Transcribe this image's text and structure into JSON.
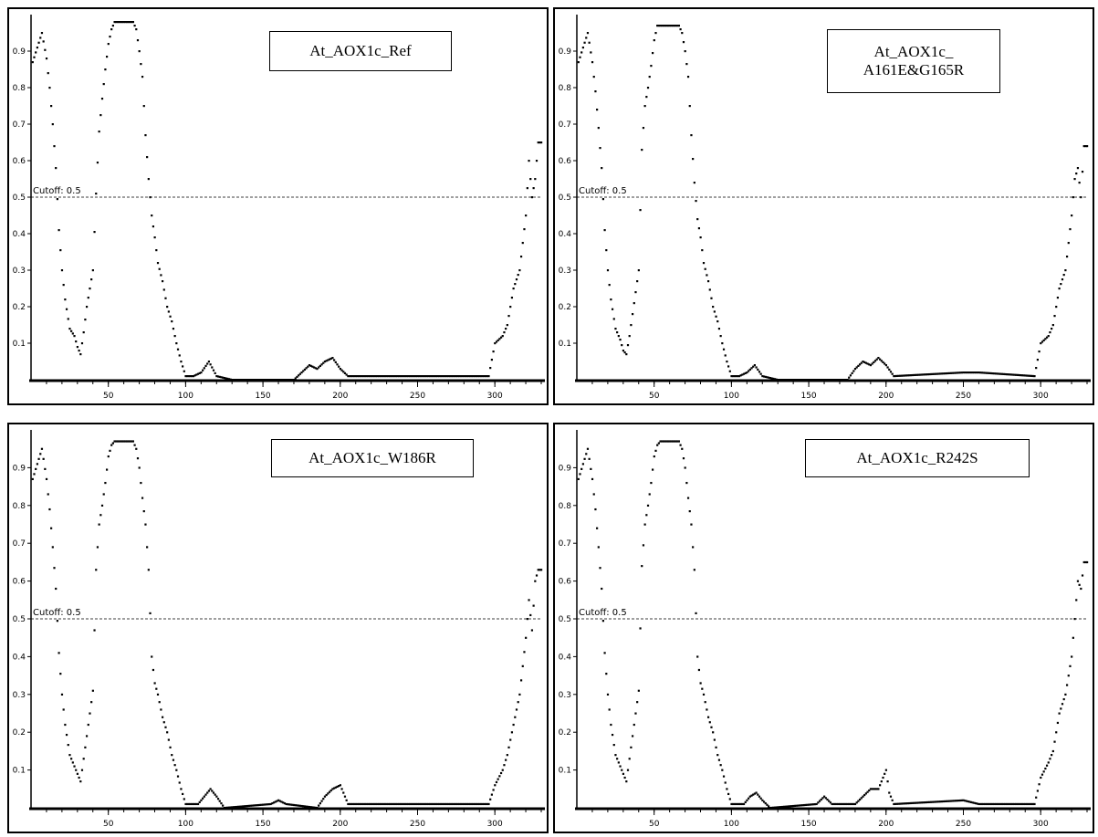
{
  "figure": {
    "panels": [
      {
        "id": "ref",
        "title_lines": [
          "At_AOX1c_Ref"
        ]
      },
      {
        "id": "a161e",
        "title_lines": [
          "At_AOX1c_",
          "A161E&G165R"
        ]
      },
      {
        "id": "w186r",
        "title_lines": [
          "At_AOX1c_W186R"
        ]
      },
      {
        "id": "r242s",
        "title_lines": [
          "At_AOX1c_R242S"
        ]
      }
    ]
  },
  "chart_data": [
    {
      "type": "scatter",
      "title": "At_AOX1c_Ref",
      "xlabel": "",
      "ylabel": "",
      "xlim": [
        0,
        330
      ],
      "ylim": [
        0,
        1.0
      ],
      "x_ticks": [
        50,
        100,
        150,
        200,
        250,
        300
      ],
      "y_ticks": [
        0.1,
        0.2,
        0.3,
        0.4,
        0.5,
        0.6,
        0.7,
        0.8,
        0.9
      ],
      "cutoff": {
        "label": "Cutoff: 0.5",
        "value": 0.5
      },
      "profile": [
        [
          1,
          0.87
        ],
        [
          4,
          0.91
        ],
        [
          7,
          0.95
        ],
        [
          10,
          0.88
        ],
        [
          12,
          0.8
        ],
        [
          14,
          0.7
        ],
        [
          16,
          0.58
        ],
        [
          18,
          0.41
        ],
        [
          20,
          0.3
        ],
        [
          22,
          0.22
        ],
        [
          25,
          0.14
        ],
        [
          28,
          0.12
        ],
        [
          30,
          0.09
        ],
        [
          32,
          0.07
        ],
        [
          34,
          0.13
        ],
        [
          36,
          0.2
        ],
        [
          38,
          0.25
        ],
        [
          40,
          0.3
        ],
        [
          42,
          0.51
        ],
        [
          44,
          0.68
        ],
        [
          46,
          0.77
        ],
        [
          48,
          0.85
        ],
        [
          50,
          0.92
        ],
        [
          52,
          0.96
        ],
        [
          54,
          0.98
        ],
        [
          60,
          0.98
        ],
        [
          66,
          0.98
        ],
        [
          68,
          0.96
        ],
        [
          70,
          0.9
        ],
        [
          72,
          0.83
        ],
        [
          74,
          0.67
        ],
        [
          76,
          0.55
        ],
        [
          78,
          0.45
        ],
        [
          80,
          0.39
        ],
        [
          82,
          0.32
        ],
        [
          85,
          0.27
        ],
        [
          88,
          0.2
        ],
        [
          91,
          0.16
        ],
        [
          94,
          0.1
        ],
        [
          97,
          0.05
        ],
        [
          100,
          0.01
        ],
        [
          105,
          0.01
        ],
        [
          110,
          0.02
        ],
        [
          115,
          0.05
        ],
        [
          120,
          0.01
        ],
        [
          130,
          0.0
        ],
        [
          170,
          0.0
        ],
        [
          175,
          0.02
        ],
        [
          180,
          0.04
        ],
        [
          185,
          0.03
        ],
        [
          190,
          0.05
        ],
        [
          195,
          0.06
        ],
        [
          200,
          0.03
        ],
        [
          205,
          0.01
        ],
        [
          250,
          0.01
        ],
        [
          270,
          0.01
        ],
        [
          296,
          0.01
        ],
        [
          300,
          0.1
        ],
        [
          305,
          0.12
        ],
        [
          308,
          0.15
        ],
        [
          312,
          0.25
        ],
        [
          316,
          0.3
        ],
        [
          320,
          0.45
        ],
        [
          322,
          0.6
        ],
        [
          324,
          0.5
        ],
        [
          326,
          0.55
        ],
        [
          328,
          0.65
        ]
      ]
    },
    {
      "type": "scatter",
      "title": "At_AOX1c_ A161E&G165R",
      "xlabel": "",
      "ylabel": "",
      "xlim": [
        0,
        330
      ],
      "ylim": [
        0,
        1.0
      ],
      "x_ticks": [
        50,
        100,
        150,
        200,
        250,
        300
      ],
      "y_ticks": [
        0.1,
        0.2,
        0.3,
        0.4,
        0.5,
        0.6,
        0.7,
        0.8,
        0.9
      ],
      "cutoff": {
        "label": "Cutoff: 0.5",
        "value": 0.5
      },
      "profile": [
        [
          1,
          0.87
        ],
        [
          4,
          0.91
        ],
        [
          7,
          0.95
        ],
        [
          10,
          0.87
        ],
        [
          12,
          0.79
        ],
        [
          14,
          0.69
        ],
        [
          16,
          0.58
        ],
        [
          18,
          0.41
        ],
        [
          20,
          0.3
        ],
        [
          22,
          0.22
        ],
        [
          25,
          0.14
        ],
        [
          28,
          0.11
        ],
        [
          30,
          0.08
        ],
        [
          32,
          0.07
        ],
        [
          34,
          0.12
        ],
        [
          36,
          0.18
        ],
        [
          38,
          0.24
        ],
        [
          40,
          0.3
        ],
        [
          42,
          0.63
        ],
        [
          44,
          0.75
        ],
        [
          46,
          0.8
        ],
        [
          48,
          0.86
        ],
        [
          50,
          0.93
        ],
        [
          52,
          0.97
        ],
        [
          54,
          0.97
        ],
        [
          66,
          0.97
        ],
        [
          68,
          0.95
        ],
        [
          70,
          0.9
        ],
        [
          72,
          0.83
        ],
        [
          74,
          0.67
        ],
        [
          76,
          0.54
        ],
        [
          78,
          0.44
        ],
        [
          80,
          0.39
        ],
        [
          82,
          0.32
        ],
        [
          85,
          0.27
        ],
        [
          88,
          0.2
        ],
        [
          91,
          0.16
        ],
        [
          94,
          0.1
        ],
        [
          97,
          0.05
        ],
        [
          100,
          0.01
        ],
        [
          105,
          0.01
        ],
        [
          110,
          0.02
        ],
        [
          115,
          0.04
        ],
        [
          120,
          0.01
        ],
        [
          130,
          0.0
        ],
        [
          175,
          0.0
        ],
        [
          180,
          0.03
        ],
        [
          185,
          0.05
        ],
        [
          190,
          0.04
        ],
        [
          195,
          0.06
        ],
        [
          200,
          0.04
        ],
        [
          205,
          0.01
        ],
        [
          250,
          0.02
        ],
        [
          260,
          0.02
        ],
        [
          296,
          0.01
        ],
        [
          300,
          0.1
        ],
        [
          305,
          0.12
        ],
        [
          308,
          0.15
        ],
        [
          312,
          0.25
        ],
        [
          316,
          0.3
        ],
        [
          320,
          0.45
        ],
        [
          322,
          0.55
        ],
        [
          324,
          0.58
        ],
        [
          326,
          0.5
        ],
        [
          328,
          0.64
        ]
      ]
    },
    {
      "type": "scatter",
      "title": "At_AOX1c_W186R",
      "xlabel": "",
      "ylabel": "",
      "xlim": [
        0,
        330
      ],
      "ylim": [
        0,
        1.0
      ],
      "x_ticks": [
        50,
        100,
        150,
        200,
        250,
        300
      ],
      "y_ticks": [
        0.1,
        0.2,
        0.3,
        0.4,
        0.5,
        0.6,
        0.7,
        0.8,
        0.9
      ],
      "cutoff": {
        "label": "Cutoff: 0.5",
        "value": 0.5
      },
      "profile": [
        [
          1,
          0.87
        ],
        [
          4,
          0.91
        ],
        [
          7,
          0.95
        ],
        [
          10,
          0.87
        ],
        [
          12,
          0.79
        ],
        [
          14,
          0.69
        ],
        [
          16,
          0.58
        ],
        [
          18,
          0.41
        ],
        [
          20,
          0.3
        ],
        [
          22,
          0.22
        ],
        [
          25,
          0.14
        ],
        [
          28,
          0.11
        ],
        [
          30,
          0.09
        ],
        [
          32,
          0.07
        ],
        [
          34,
          0.13
        ],
        [
          36,
          0.19
        ],
        [
          38,
          0.25
        ],
        [
          40,
          0.31
        ],
        [
          42,
          0.63
        ],
        [
          44,
          0.75
        ],
        [
          46,
          0.8
        ],
        [
          48,
          0.86
        ],
        [
          50,
          0.93
        ],
        [
          52,
          0.96
        ],
        [
          54,
          0.97
        ],
        [
          66,
          0.97
        ],
        [
          68,
          0.95
        ],
        [
          70,
          0.9
        ],
        [
          72,
          0.82
        ],
        [
          74,
          0.75
        ],
        [
          76,
          0.63
        ],
        [
          78,
          0.4
        ],
        [
          80,
          0.33
        ],
        [
          82,
          0.3
        ],
        [
          85,
          0.24
        ],
        [
          88,
          0.2
        ],
        [
          91,
          0.14
        ],
        [
          94,
          0.1
        ],
        [
          97,
          0.05
        ],
        [
          100,
          0.01
        ],
        [
          108,
          0.01
        ],
        [
          112,
          0.03
        ],
        [
          116,
          0.05
        ],
        [
          120,
          0.03
        ],
        [
          125,
          0.0
        ],
        [
          155,
          0.01
        ],
        [
          160,
          0.02
        ],
        [
          165,
          0.01
        ],
        [
          185,
          0.0
        ],
        [
          190,
          0.03
        ],
        [
          195,
          0.05
        ],
        [
          200,
          0.06
        ],
        [
          205,
          0.01
        ],
        [
          250,
          0.01
        ],
        [
          296,
          0.01
        ],
        [
          300,
          0.06
        ],
        [
          305,
          0.1
        ],
        [
          308,
          0.14
        ],
        [
          312,
          0.22
        ],
        [
          316,
          0.3
        ],
        [
          320,
          0.45
        ],
        [
          322,
          0.55
        ],
        [
          324,
          0.47
        ],
        [
          326,
          0.6
        ],
        [
          328,
          0.63
        ]
      ]
    },
    {
      "type": "scatter",
      "title": "At_AOX1c_R242S",
      "xlabel": "",
      "ylabel": "",
      "xlim": [
        0,
        330
      ],
      "ylim": [
        0,
        1.0
      ],
      "x_ticks": [
        50,
        100,
        150,
        200,
        250,
        300
      ],
      "y_ticks": [
        0.1,
        0.2,
        0.3,
        0.4,
        0.5,
        0.6,
        0.7,
        0.8,
        0.9
      ],
      "cutoff": {
        "label": "Cutoff: 0.5",
        "value": 0.5
      },
      "profile": [
        [
          1,
          0.87
        ],
        [
          4,
          0.91
        ],
        [
          7,
          0.95
        ],
        [
          10,
          0.87
        ],
        [
          12,
          0.79
        ],
        [
          14,
          0.69
        ],
        [
          16,
          0.58
        ],
        [
          18,
          0.41
        ],
        [
          20,
          0.3
        ],
        [
          22,
          0.22
        ],
        [
          25,
          0.14
        ],
        [
          28,
          0.11
        ],
        [
          30,
          0.09
        ],
        [
          32,
          0.07
        ],
        [
          34,
          0.13
        ],
        [
          36,
          0.19
        ],
        [
          38,
          0.25
        ],
        [
          40,
          0.31
        ],
        [
          42,
          0.64
        ],
        [
          44,
          0.75
        ],
        [
          46,
          0.8
        ],
        [
          48,
          0.86
        ],
        [
          50,
          0.93
        ],
        [
          52,
          0.96
        ],
        [
          54,
          0.97
        ],
        [
          66,
          0.97
        ],
        [
          68,
          0.95
        ],
        [
          70,
          0.9
        ],
        [
          72,
          0.82
        ],
        [
          74,
          0.75
        ],
        [
          76,
          0.63
        ],
        [
          78,
          0.4
        ],
        [
          80,
          0.33
        ],
        [
          82,
          0.3
        ],
        [
          85,
          0.24
        ],
        [
          88,
          0.2
        ],
        [
          91,
          0.14
        ],
        [
          94,
          0.1
        ],
        [
          97,
          0.05
        ],
        [
          100,
          0.01
        ],
        [
          108,
          0.01
        ],
        [
          112,
          0.03
        ],
        [
          116,
          0.04
        ],
        [
          120,
          0.02
        ],
        [
          125,
          0.0
        ],
        [
          155,
          0.01
        ],
        [
          160,
          0.03
        ],
        [
          165,
          0.01
        ],
        [
          180,
          0.01
        ],
        [
          185,
          0.03
        ],
        [
          190,
          0.05
        ],
        [
          195,
          0.05
        ],
        [
          200,
          0.1
        ],
        [
          202,
          0.04
        ],
        [
          205,
          0.01
        ],
        [
          250,
          0.02
        ],
        [
          260,
          0.01
        ],
        [
          296,
          0.01
        ],
        [
          300,
          0.08
        ],
        [
          305,
          0.12
        ],
        [
          308,
          0.15
        ],
        [
          312,
          0.25
        ],
        [
          316,
          0.3
        ],
        [
          320,
          0.4
        ],
        [
          322,
          0.5
        ],
        [
          324,
          0.6
        ],
        [
          326,
          0.58
        ],
        [
          328,
          0.65
        ]
      ]
    }
  ]
}
